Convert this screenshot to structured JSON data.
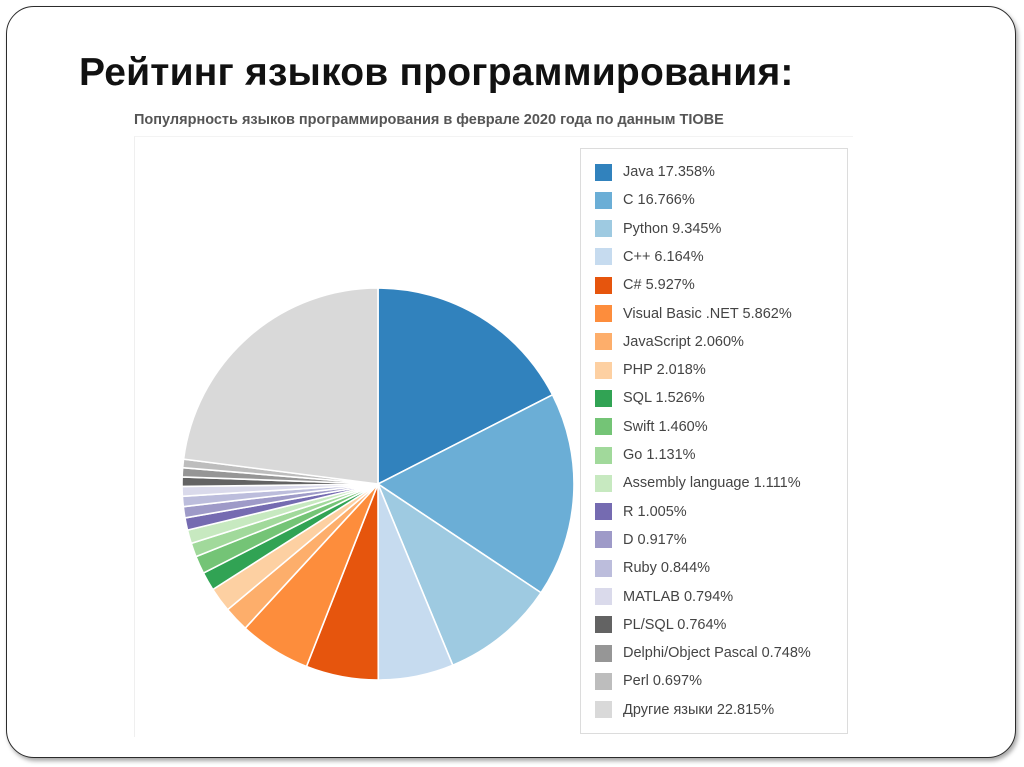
{
  "slide": {
    "title": "Рейтинг языков программирования:"
  },
  "chart_data": {
    "type": "pie",
    "title": "Популярность языков программирования в феврале 2020 года по данным TIOBE",
    "legend_position": "right",
    "series": [
      {
        "name": "Java",
        "value": 17.358,
        "label": "Java 17.358%",
        "color": "#3182bd"
      },
      {
        "name": "C",
        "value": 16.766,
        "label": "C 16.766%",
        "color": "#6baed6"
      },
      {
        "name": "Python",
        "value": 9.345,
        "label": "Python 9.345%",
        "color": "#9ecae1"
      },
      {
        "name": "C++",
        "value": 6.164,
        "label": "C++ 6.164%",
        "color": "#c6dbef"
      },
      {
        "name": "C#",
        "value": 5.927,
        "label": "C# 5.927%",
        "color": "#e6550d"
      },
      {
        "name": "Visual Basic .NET",
        "value": 5.862,
        "label": "Visual Basic .NET 5.862%",
        "color": "#fd8d3c"
      },
      {
        "name": "JavaScript",
        "value": 2.06,
        "label": "JavaScript 2.060%",
        "color": "#fdae6b"
      },
      {
        "name": "PHP",
        "value": 2.018,
        "label": "PHP 2.018%",
        "color": "#fdd0a2"
      },
      {
        "name": "SQL",
        "value": 1.526,
        "label": "SQL 1.526%",
        "color": "#31a354"
      },
      {
        "name": "Swift",
        "value": 1.46,
        "label": "Swift 1.460%",
        "color": "#74c476"
      },
      {
        "name": "Go",
        "value": 1.131,
        "label": "Go 1.131%",
        "color": "#a1d99b"
      },
      {
        "name": "Assembly language",
        "value": 1.111,
        "label": "Assembly language 1.111%",
        "color": "#c7e9c0"
      },
      {
        "name": "R",
        "value": 1.005,
        "label": "R 1.005%",
        "color": "#756bb1"
      },
      {
        "name": "D",
        "value": 0.917,
        "label": "D 0.917%",
        "color": "#9e9ac8"
      },
      {
        "name": "Ruby",
        "value": 0.844,
        "label": "Ruby 0.844%",
        "color": "#bcbddc"
      },
      {
        "name": "MATLAB",
        "value": 0.794,
        "label": "MATLAB 0.794%",
        "color": "#dadaeb"
      },
      {
        "name": "PL/SQL",
        "value": 0.764,
        "label": "PL/SQL 0.764%",
        "color": "#636363"
      },
      {
        "name": "Delphi/Object Pascal",
        "value": 0.748,
        "label": "Delphi/Object Pascal 0.748%",
        "color": "#969696"
      },
      {
        "name": "Perl",
        "value": 0.697,
        "label": "Perl 0.697%",
        "color": "#bdbdbd"
      },
      {
        "name": "Другие языки",
        "value": 22.815,
        "label": "Другие языки 22.815%",
        "color": "#d9d9d9"
      }
    ]
  }
}
